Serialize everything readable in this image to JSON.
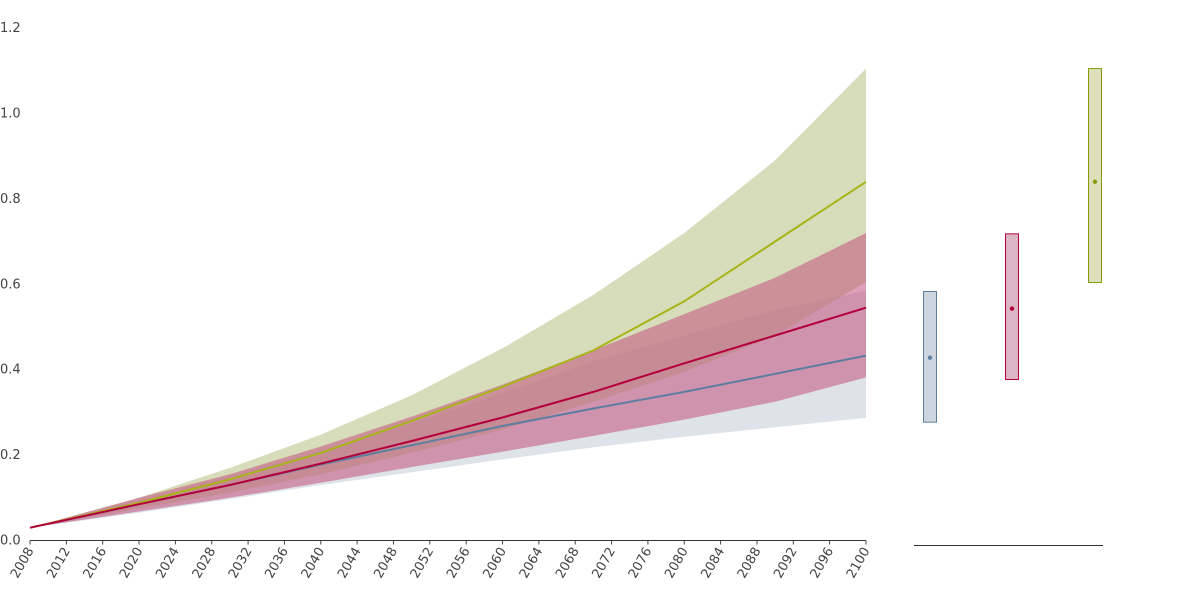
{
  "chart_data": [
    {
      "type": "line",
      "title": "",
      "xlabel": "",
      "ylabel": "",
      "xlim": [
        2008,
        2100
      ],
      "ylim": [
        0,
        1.2
      ],
      "x_ticks": [
        "2008",
        "2012",
        "2016",
        "2020",
        "2024",
        "2028",
        "2032",
        "2036",
        "2040",
        "2044",
        "2048",
        "2052",
        "2056",
        "2060",
        "2064",
        "2068",
        "2072",
        "2076",
        "2080",
        "2084",
        "2088",
        "2092",
        "2096",
        "2100"
      ],
      "y_ticks": [
        "0.0",
        "0.2",
        "0.4",
        "0.6",
        "0.8",
        "1.0",
        "1.2"
      ],
      "grid": false,
      "x": [
        2008,
        2020,
        2030,
        2040,
        2050,
        2060,
        2070,
        2080,
        2090,
        2100
      ],
      "series": [
        {
          "color": "#5e7ea0",
          "band_color": "#c8d0da",
          "values": [
            0.03,
            0.085,
            0.13,
            0.178,
            0.223,
            0.268,
            0.309,
            0.348,
            0.39,
            0.433
          ],
          "lower": [
            0.03,
            0.065,
            0.097,
            0.13,
            0.16,
            0.19,
            0.218,
            0.243,
            0.265,
            0.287
          ],
          "upper": [
            0.03,
            0.095,
            0.15,
            0.21,
            0.275,
            0.345,
            0.42,
            0.48,
            0.54,
            0.585
          ]
        },
        {
          "color": "#b3003c",
          "band_color": "#c3527d",
          "values": [
            0.03,
            0.085,
            0.13,
            0.18,
            0.233,
            0.288,
            0.348,
            0.415,
            0.48,
            0.545
          ],
          "lower": [
            0.03,
            0.068,
            0.1,
            0.135,
            0.172,
            0.208,
            0.245,
            0.283,
            0.325,
            0.382
          ],
          "upper": [
            0.03,
            0.1,
            0.155,
            0.22,
            0.29,
            0.365,
            0.445,
            0.53,
            0.615,
            0.72
          ]
        },
        {
          "color": "#a9b418",
          "band_color": "#bcc48c",
          "values": [
            0.03,
            0.088,
            0.143,
            0.205,
            0.28,
            0.36,
            0.445,
            0.56,
            0.7,
            0.84
          ],
          "lower": [
            0.03,
            0.075,
            0.112,
            0.155,
            0.205,
            0.26,
            0.325,
            0.395,
            0.48,
            0.605
          ],
          "upper": [
            0.03,
            0.1,
            0.17,
            0.248,
            0.34,
            0.45,
            0.575,
            0.72,
            0.89,
            1.105
          ]
        }
      ]
    },
    {
      "type": "range",
      "ylim": [
        0,
        1.2
      ],
      "ranges": [
        {
          "color": "#5e7ea0",
          "fill": "#cdd5de",
          "low": 0.277,
          "mid": 0.428,
          "high": 0.583
        },
        {
          "color": "#b3003c",
          "fill": "#dcb6c4",
          "low": 0.377,
          "mid": 0.543,
          "high": 0.718
        },
        {
          "color": "#8a9a0a",
          "fill": "#dde1bb",
          "low": 0.604,
          "mid": 0.84,
          "high": 1.105
        }
      ]
    }
  ]
}
